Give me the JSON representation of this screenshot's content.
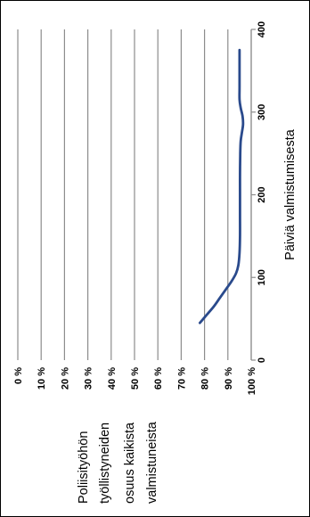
{
  "chart_data": {
    "type": "line",
    "orientation": "rotated-90-ccw",
    "xlabel": "Päiviä valmistumisesta",
    "ylabel_lines": [
      "Poliisityöhön",
      "työllistyneiden",
      "osuus kaikista",
      "valmistuneista"
    ],
    "xlim": [
      0,
      400
    ],
    "ylim": [
      0,
      100
    ],
    "xticks": [
      "0",
      "100",
      "200",
      "300",
      "400"
    ],
    "yticks": [
      "0 %",
      "10 %",
      "20 %",
      "30 %",
      "40 %",
      "50 %",
      "60 %",
      "70 %",
      "80 %",
      "90 %",
      "100 %"
    ],
    "grid": "horizontal",
    "legend": "none",
    "series": [
      {
        "color": "#2a4a8c",
        "points": [
          [
            45,
            78
          ],
          [
            55,
            81
          ],
          [
            65,
            84
          ],
          [
            75,
            86.5
          ],
          [
            85,
            89
          ],
          [
            95,
            91.5
          ],
          [
            105,
            93.5
          ],
          [
            115,
            94.5
          ],
          [
            130,
            95
          ],
          [
            150,
            95.2
          ],
          [
            175,
            95.2
          ],
          [
            200,
            95.2
          ],
          [
            225,
            95.2
          ],
          [
            250,
            95.3
          ],
          [
            265,
            95.5
          ],
          [
            275,
            96
          ],
          [
            285,
            96.5
          ],
          [
            295,
            96.3
          ],
          [
            305,
            95.5
          ],
          [
            315,
            95
          ],
          [
            330,
            95
          ],
          [
            350,
            95
          ],
          [
            375,
            95
          ]
        ]
      }
    ]
  }
}
